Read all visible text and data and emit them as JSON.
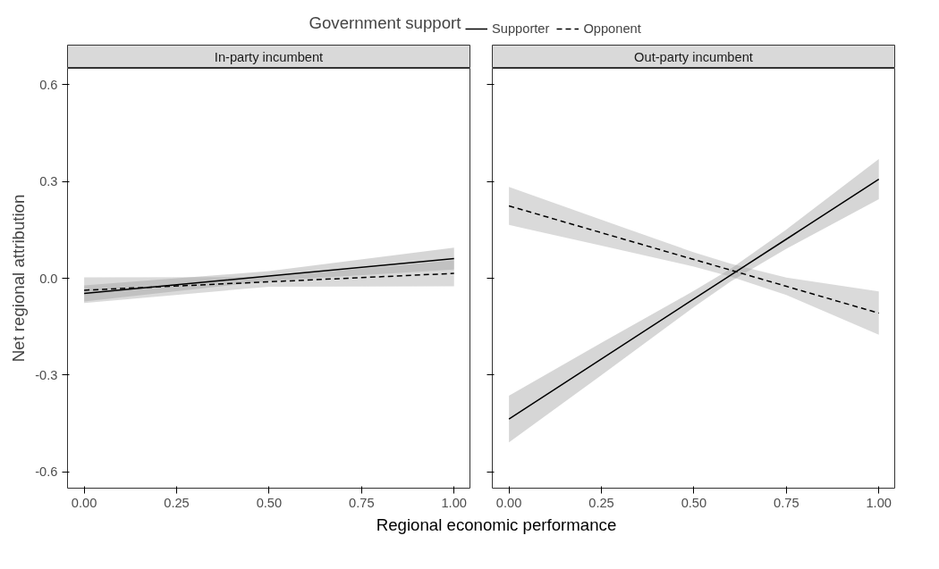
{
  "chart_data": [
    {
      "type": "line",
      "title": "In-party incumbent",
      "xlabel": "Regional economic performance",
      "ylabel": "Net regional attribution",
      "legend_title": "Government support",
      "legend": "top",
      "grid": false,
      "xlim": [
        -0.045,
        1.043
      ],
      "ylim": [
        -0.65,
        0.65
      ],
      "xticks": [
        {
          "value": 0,
          "label": "0.00"
        },
        {
          "value": 0.25,
          "label": "0.25"
        },
        {
          "value": 0.5,
          "label": "0.50"
        },
        {
          "value": 0.75,
          "label": "0.75"
        },
        {
          "value": 1,
          "label": "1.00"
        }
      ],
      "yticks": [
        {
          "value": -0.6,
          "label": "-0.6"
        },
        {
          "value": -0.3,
          "label": "-0.3"
        },
        {
          "value": 0,
          "label": "0.0"
        },
        0.3,
        0.6
      ],
      "x": [
        0,
        0.5,
        1
      ],
      "series": [
        {
          "name": "Supporter",
          "color": "#000000",
          "line_style": "solid",
          "values": [
            -0.047,
            0.007,
            0.061
          ],
          "lower": [
            -0.072,
            -0.008,
            0.027
          ],
          "upper": [
            -0.022,
            0.022,
            0.095
          ]
        },
        {
          "name": "Opponent",
          "color": "#000000",
          "line_style": "dashed",
          "values": [
            -0.037,
            -0.011,
            0.015
          ],
          "lower": [
            -0.077,
            -0.026,
            -0.025
          ],
          "upper": [
            0.003,
            0.004,
            0.055
          ]
        }
      ]
    },
    {
      "type": "line",
      "title": "Out-party incumbent",
      "tick_labels": "x",
      "grid": false,
      "xlim": [
        -0.045,
        1.043
      ],
      "ylim": [
        -0.65,
        0.65
      ],
      "xticks": [
        {
          "value": 0,
          "label": "0.00"
        },
        {
          "value": 0.25,
          "label": "0.25"
        },
        {
          "value": 0.5,
          "label": "0.50"
        },
        {
          "value": 0.75,
          "label": "0.75"
        },
        {
          "value": 1,
          "label": "1.00"
        }
      ],
      "yticks": [
        {
          "value": -0.6,
          "label": null
        },
        {
          "value": -0.3,
          "label": null
        },
        {
          "value": 0,
          "label": null
        },
        {
          "value": 0.3,
          "label": null
        },
        {
          "value": 0.6,
          "label": null
        }
      ],
      "x": [
        0,
        0.25,
        0.5,
        0.6,
        0.75,
        1
      ],
      "series": [
        {
          "color": "#000000",
          "line_style": "solid",
          "values": [
            -0.436,
            -0.25,
            -0.064,
            0.01,
            0.121,
            0.307
          ],
          "lower": [
            -0.508,
            -0.3,
            -0.089,
            -0.01,
            0.091,
            0.245
          ],
          "upper": [
            -0.364,
            -0.2,
            -0.039,
            0.03,
            0.151,
            0.369
          ]
        },
        {
          "color": "#000000",
          "line_style": "dashed",
          "values": [
            0.224,
            0.141,
            0.058,
            0.025,
            -0.025,
            -0.108
          ],
          "lower": [
            0.165,
            0.101,
            0.036,
            0.005,
            -0.052,
            -0.175
          ],
          "upper": [
            0.283,
            0.181,
            0.08,
            0.045,
            0.002,
            -0.041
          ]
        }
      ]
    }
  ]
}
